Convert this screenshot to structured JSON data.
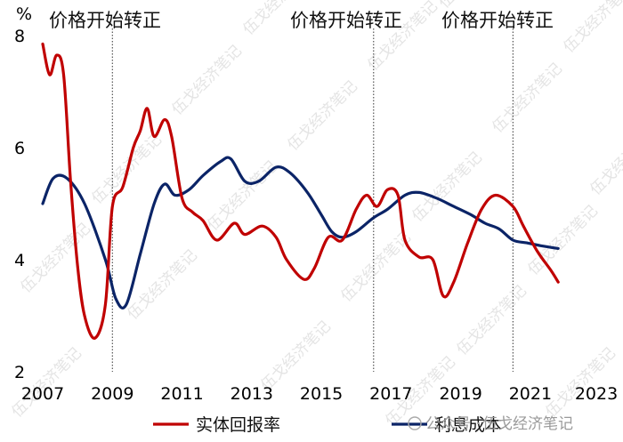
{
  "chart_data": {
    "type": "line",
    "title": "",
    "xlabel": "",
    "ylabel": "",
    "y_unit": "%",
    "xlim": [
      2007,
      2023.2
    ],
    "ylim": [
      2,
      8
    ],
    "x_ticks": [
      "2007",
      "2009",
      "2011",
      "2013",
      "2015",
      "2017",
      "2019",
      "2021",
      "2023"
    ],
    "y_ticks": [
      "2",
      "4",
      "6",
      "8"
    ],
    "grid": false,
    "legend_position": "bottom",
    "annotations": [
      {
        "x": 2009.0,
        "text": "价格开始转正"
      },
      {
        "x": 2016.5,
        "text": "价格开始转正"
      },
      {
        "x": 2020.5,
        "text": "价格开始转正"
      }
    ],
    "series": [
      {
        "name": "实体回报率",
        "color": "#C00000",
        "points": [
          [
            2007.0,
            7.85
          ],
          [
            2007.2,
            7.3
          ],
          [
            2007.4,
            7.65
          ],
          [
            2007.6,
            7.3
          ],
          [
            2007.8,
            5.4
          ],
          [
            2008.0,
            3.9
          ],
          [
            2008.2,
            3.0
          ],
          [
            2008.5,
            2.6
          ],
          [
            2008.8,
            3.2
          ],
          [
            2009.0,
            4.95
          ],
          [
            2009.3,
            5.3
          ],
          [
            2009.6,
            6.0
          ],
          [
            2009.8,
            6.3
          ],
          [
            2010.0,
            6.7
          ],
          [
            2010.2,
            6.2
          ],
          [
            2010.5,
            6.5
          ],
          [
            2010.7,
            6.2
          ],
          [
            2011.0,
            5.1
          ],
          [
            2011.3,
            4.85
          ],
          [
            2011.6,
            4.7
          ],
          [
            2012.0,
            4.35
          ],
          [
            2012.5,
            4.65
          ],
          [
            2012.8,
            4.45
          ],
          [
            2013.3,
            4.6
          ],
          [
            2013.7,
            4.4
          ],
          [
            2014.0,
            4.0
          ],
          [
            2014.5,
            3.65
          ],
          [
            2014.8,
            3.85
          ],
          [
            2015.2,
            4.4
          ],
          [
            2015.6,
            4.35
          ],
          [
            2016.0,
            4.9
          ],
          [
            2016.3,
            5.15
          ],
          [
            2016.6,
            4.95
          ],
          [
            2016.9,
            5.25
          ],
          [
            2017.2,
            5.15
          ],
          [
            2017.4,
            4.35
          ],
          [
            2017.8,
            4.05
          ],
          [
            2018.2,
            4.0
          ],
          [
            2018.5,
            3.35
          ],
          [
            2018.8,
            3.6
          ],
          [
            2019.2,
            4.3
          ],
          [
            2019.6,
            4.9
          ],
          [
            2020.0,
            5.15
          ],
          [
            2020.5,
            4.95
          ],
          [
            2020.8,
            4.6
          ],
          [
            2021.2,
            4.15
          ],
          [
            2021.6,
            3.8
          ],
          [
            2021.8,
            3.6
          ]
        ]
      },
      {
        "name": "利息成本",
        "color": "#0B2467",
        "points": [
          [
            2007.0,
            5.0
          ],
          [
            2007.3,
            5.45
          ],
          [
            2007.7,
            5.45
          ],
          [
            2008.2,
            5.0
          ],
          [
            2008.8,
            4.0
          ],
          [
            2009.1,
            3.3
          ],
          [
            2009.4,
            3.2
          ],
          [
            2009.8,
            4.1
          ],
          [
            2010.2,
            5.0
          ],
          [
            2010.5,
            5.35
          ],
          [
            2010.8,
            5.15
          ],
          [
            2011.2,
            5.25
          ],
          [
            2011.6,
            5.5
          ],
          [
            2012.1,
            5.75
          ],
          [
            2012.4,
            5.8
          ],
          [
            2012.8,
            5.4
          ],
          [
            2013.2,
            5.4
          ],
          [
            2013.7,
            5.65
          ],
          [
            2014.1,
            5.55
          ],
          [
            2014.6,
            5.2
          ],
          [
            2015.0,
            4.8
          ],
          [
            2015.3,
            4.5
          ],
          [
            2015.6,
            4.4
          ],
          [
            2016.0,
            4.5
          ],
          [
            2016.5,
            4.75
          ],
          [
            2016.9,
            4.9
          ],
          [
            2017.4,
            5.15
          ],
          [
            2017.8,
            5.2
          ],
          [
            2018.3,
            5.1
          ],
          [
            2018.8,
            4.95
          ],
          [
            2019.3,
            4.8
          ],
          [
            2019.7,
            4.65
          ],
          [
            2020.1,
            4.55
          ],
          [
            2020.5,
            4.35
          ],
          [
            2020.9,
            4.3
          ],
          [
            2021.3,
            4.25
          ],
          [
            2021.8,
            4.2
          ]
        ]
      }
    ]
  },
  "watermark": "伍戈经济笔记",
  "footer": {
    "source_prefix": "公众号 ·",
    "source_name": "伍戈经济笔记"
  }
}
